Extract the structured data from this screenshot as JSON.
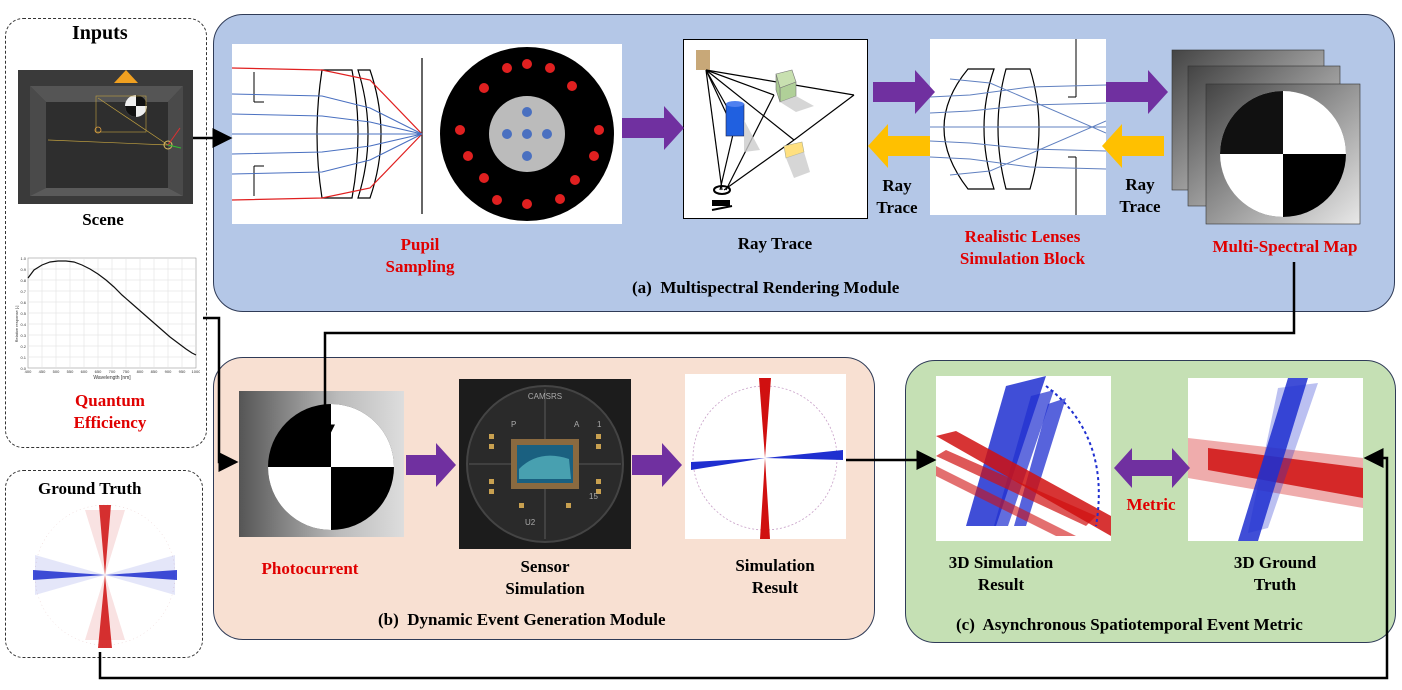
{
  "inputs": {
    "title": "Inputs",
    "scene_label": "Scene",
    "qe_label_line1": "Quantum",
    "qe_label_line2": "Efficiency",
    "qe_chart": {
      "xlabel": "Wavelength [nm]",
      "ylabel": "Relative response [-]",
      "x_ticks": [
        "400",
        "450",
        "500",
        "550",
        "600",
        "650",
        "700",
        "750",
        "800",
        "850",
        "900",
        "950",
        "1000"
      ],
      "y_ticks": [
        "0.0",
        "0.1",
        "0.2",
        "0.3",
        "0.4",
        "0.5",
        "0.6",
        "0.7",
        "0.8",
        "0.9",
        "1.0"
      ]
    }
  },
  "ground_truth": {
    "title": "Ground Truth"
  },
  "module_a": {
    "title_prefix": "(a)",
    "title": "Multispectral Rendering Module",
    "pupil_label_line1": "Pupil",
    "pupil_label_line2": "Sampling",
    "ray_trace_label": "Ray Trace",
    "lens_label_line1": "Realistic Lenses",
    "lens_label_line2": "Simulation Block",
    "ray_trace_left_line1": "Ray",
    "ray_trace_left_line2": "Trace",
    "ray_trace_right_line1": "Ray",
    "ray_trace_right_line2": "Trace",
    "msmap_label": "Multi-Spectral Map"
  },
  "module_b": {
    "title_prefix": "(b)",
    "title": "Dynamic Event Generation Module",
    "photocurrent_label": "Photocurrent",
    "sensor_label_line1": "Sensor",
    "sensor_label_line2": "Simulation",
    "sim_label_line1": "Simulation",
    "sim_label_line2": "Result",
    "sensor_text_top": "CAMSRS",
    "sensor_text_p": "P",
    "sensor_text_a": "A",
    "sensor_text_1": "1",
    "sensor_text_15": "15",
    "sensor_text_u2": "U2"
  },
  "module_c": {
    "title_prefix": "(c)",
    "title": "Asynchronous Spatiotemporal Event Metric",
    "sim3d_line1": "3D Simulation",
    "sim3d_line2": "Result",
    "gt3d_line1": "3D Ground",
    "gt3d_line2": "Truth",
    "metric_label": "Metric"
  },
  "colors": {
    "module_a_bg": "#b4c7e7",
    "module_b_bg": "#f8e0d2",
    "module_c_bg": "#c5e0b4",
    "arrow_purple": "#7030a0",
    "arrow_yellow": "#ffc000",
    "label_red": "#e00000",
    "event_red": "#d01010",
    "event_blue": "#1f2fd0"
  }
}
